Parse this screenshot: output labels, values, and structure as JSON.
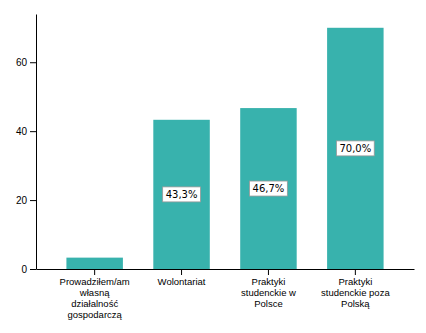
{
  "chart_data": {
    "type": "bar",
    "categories": [
      "Prowadziłem/am\nwłasną\ndziałalność\ngospodarczą",
      "Wolontariat",
      "Praktyki\nstudenckie w\nPolsce",
      "Praktyki\nstudenckie poza\nPolską"
    ],
    "values": [
      3.3,
      43.3,
      46.7,
      70.0
    ],
    "color": "#38b2ad",
    "ylim": [
      0,
      74
    ],
    "yticks": [
      0,
      20,
      40,
      60
    ],
    "data_labels": true,
    "value_labels": [
      null,
      "43,3%",
      "46,7%",
      "70,0%"
    ]
  }
}
